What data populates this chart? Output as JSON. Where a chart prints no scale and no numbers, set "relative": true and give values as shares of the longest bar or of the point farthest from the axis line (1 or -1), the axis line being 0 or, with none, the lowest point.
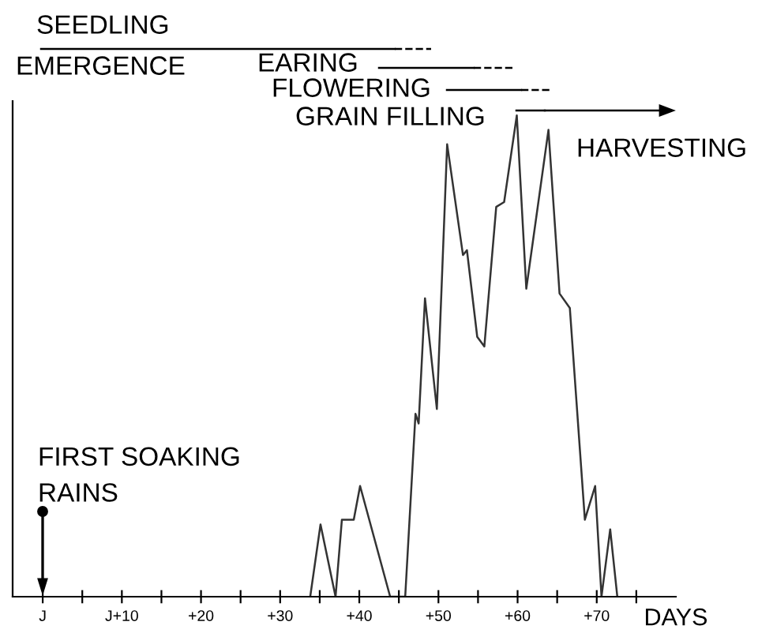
{
  "chart_data": {
    "type": "line",
    "relative": true,
    "xlabel": "DAYS",
    "x": [
      33.8,
      35.1,
      37,
      37.8,
      39.3,
      40.1,
      43.9,
      45.8,
      47.1,
      47.5,
      48.3,
      49.8,
      51.1,
      53.1,
      53.6,
      54.9,
      55.8,
      57.3,
      58.3,
      59.9,
      61.1,
      63.9,
      65.3,
      66.6,
      68.5,
      69.8,
      70.6,
      71.7,
      72.6
    ],
    "series": [
      {
        "color": "#333333",
        "values": [
          0,
          0.15,
          0,
          0.16,
          0.16,
          0.23,
          0,
          0,
          0.38,
          0.36,
          0.62,
          0.39,
          0.94,
          0.71,
          0.72,
          0.54,
          0.52,
          0.81,
          0.82,
          1,
          0.64,
          0.97,
          0.63,
          0.6,
          0.16,
          0.23,
          0,
          0.14,
          0
        ]
      }
    ],
    "xlim": [
      -3.8,
      80
    ],
    "xticks": [
      {
        "value": 0,
        "label": "J"
      },
      {
        "value": 5,
        "label": null
      },
      {
        "value": 10,
        "label": "J+10"
      },
      {
        "value": 15,
        "label": null
      },
      {
        "value": 20,
        "label": "+20"
      },
      {
        "value": 25,
        "label": null
      },
      {
        "value": 30,
        "label": "+30"
      },
      {
        "value": 35,
        "label": null
      },
      {
        "value": 40,
        "label": "+40"
      },
      {
        "value": 45,
        "label": null
      },
      {
        "value": 50,
        "label": "+50"
      },
      {
        "value": 55,
        "label": null
      },
      {
        "value": 60,
        "label": "+60"
      },
      {
        "value": 65,
        "label": null
      },
      {
        "value": 70,
        "label": "+70"
      },
      {
        "value": 75,
        "label": null
      }
    ],
    "tick_labels": "x",
    "grid": false,
    "legend": false,
    "marker": "none",
    "line_style": "solid",
    "annotations": [
      "SEEDLING",
      "EMERGENCE",
      "EARING",
      "FLOWERING",
      "GRAIN FILLING",
      "HARVESTING",
      "FIRST SOAKING\nRAINS"
    ]
  }
}
